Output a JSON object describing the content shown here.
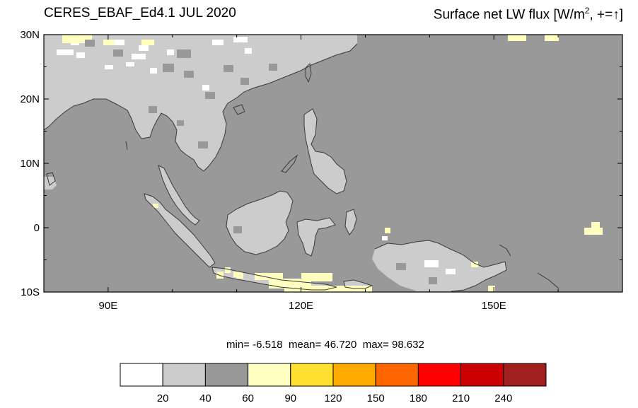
{
  "header": {
    "left_title": "CERES_EBAF_Ed4.1 JUL 2020",
    "right_title_prefix": "Surface net LW flux [W/m",
    "right_title_sup": "2",
    "right_title_mid": ", +=",
    "right_title_arrow": "↑",
    "right_title_suffix": "]"
  },
  "map": {
    "lon_range": [
      80,
      170
    ],
    "lat_range": [
      -10,
      30
    ],
    "lat_ticks": [
      {
        "value": 30,
        "label": "30N"
      },
      {
        "value": 20,
        "label": "20N"
      },
      {
        "value": 10,
        "label": "10N"
      },
      {
        "value": 0,
        "label": "0"
      },
      {
        "value": -10,
        "label": "10S"
      }
    ],
    "lon_ticks": [
      {
        "value": 90,
        "label": "90E"
      },
      {
        "value": 120,
        "label": "120E"
      },
      {
        "value": 150,
        "label": "150E"
      }
    ],
    "colors": {
      "ocean_background": "#999999",
      "land": "#cccccc",
      "white_patch": "#ffffff",
      "yellow_patch": "#ffffc0"
    }
  },
  "stats": {
    "min_label": "min=",
    "min_value": "-6.518",
    "mean_label": "mean=",
    "mean_value": "46.720",
    "max_label": "max=",
    "max_value": "98.632"
  },
  "colorbar": {
    "colors": [
      "#ffffff",
      "#cccccc",
      "#999999",
      "#ffffc0",
      "#ffe030",
      "#ffaa00",
      "#ff6600",
      "#ff0000",
      "#cc0000",
      "#a02020"
    ],
    "labels": [
      "20",
      "40",
      "60",
      "90",
      "120",
      "150",
      "180",
      "210",
      "240"
    ]
  }
}
